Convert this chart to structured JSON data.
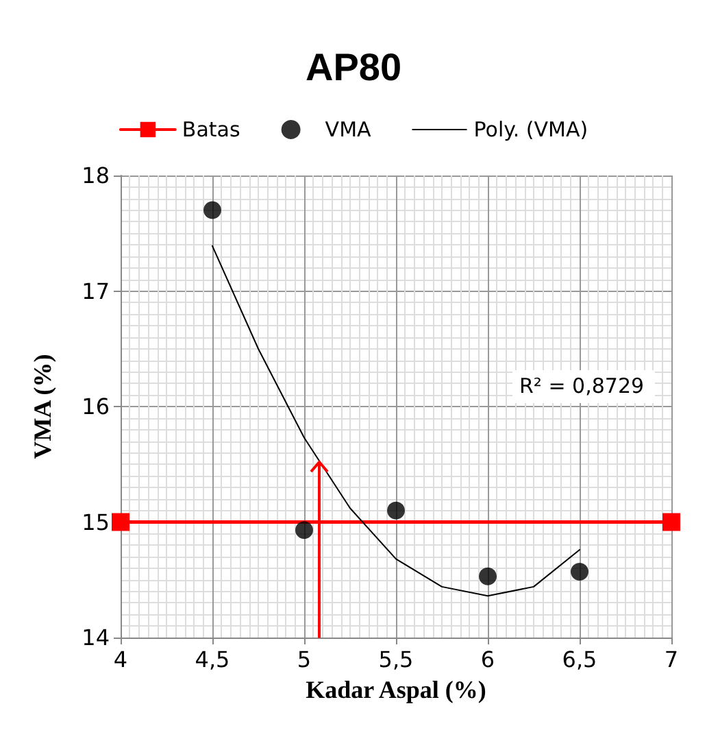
{
  "chart_data": {
    "type": "scatter",
    "title": "AP80",
    "xlabel": "Kadar Aspal (%)",
    "ylabel": "VMA (%)",
    "xlim": [
      4,
      7
    ],
    "xticks": [
      4,
      {
        "value": 4.5,
        "label": "4,5"
      },
      5,
      {
        "value": 5.5,
        "label": "5,5"
      },
      6,
      {
        "value": 6.5,
        "label": "6,5"
      },
      7
    ],
    "ylim": [
      14,
      18
    ],
    "yticks": [
      14,
      15,
      16,
      17,
      18
    ],
    "grid": true,
    "legend": "top",
    "annotations": [
      "R² = 0,8729"
    ],
    "ref_lines": [
      {
        "axis": "x",
        "value": 5.08,
        "color": "#ff0000"
      }
    ],
    "series": [
      {
        "name": "Batas",
        "type": "line",
        "color": "#ff0000",
        "marker": "square",
        "x": [
          4,
          7
        ],
        "values": [
          15,
          15
        ]
      },
      {
        "name": "VMA",
        "type": "scatter",
        "color": "#000000",
        "marker": "circle",
        "x": [
          4.5,
          5,
          5.5,
          6,
          6.5
        ],
        "values": [
          17.7,
          14.93,
          15.1,
          14.53,
          14.57
        ]
      },
      {
        "name": "Poly. (VMA)",
        "type": "line",
        "color": "#000000",
        "marker": "none",
        "x": [
          4.5,
          4.75,
          5,
          5.25,
          5.5,
          5.75,
          6,
          6.25,
          6.5
        ],
        "values": [
          17.39,
          16.5,
          15.73,
          15.12,
          14.68,
          14.44,
          14.36,
          14.44,
          14.76
        ]
      }
    ]
  }
}
